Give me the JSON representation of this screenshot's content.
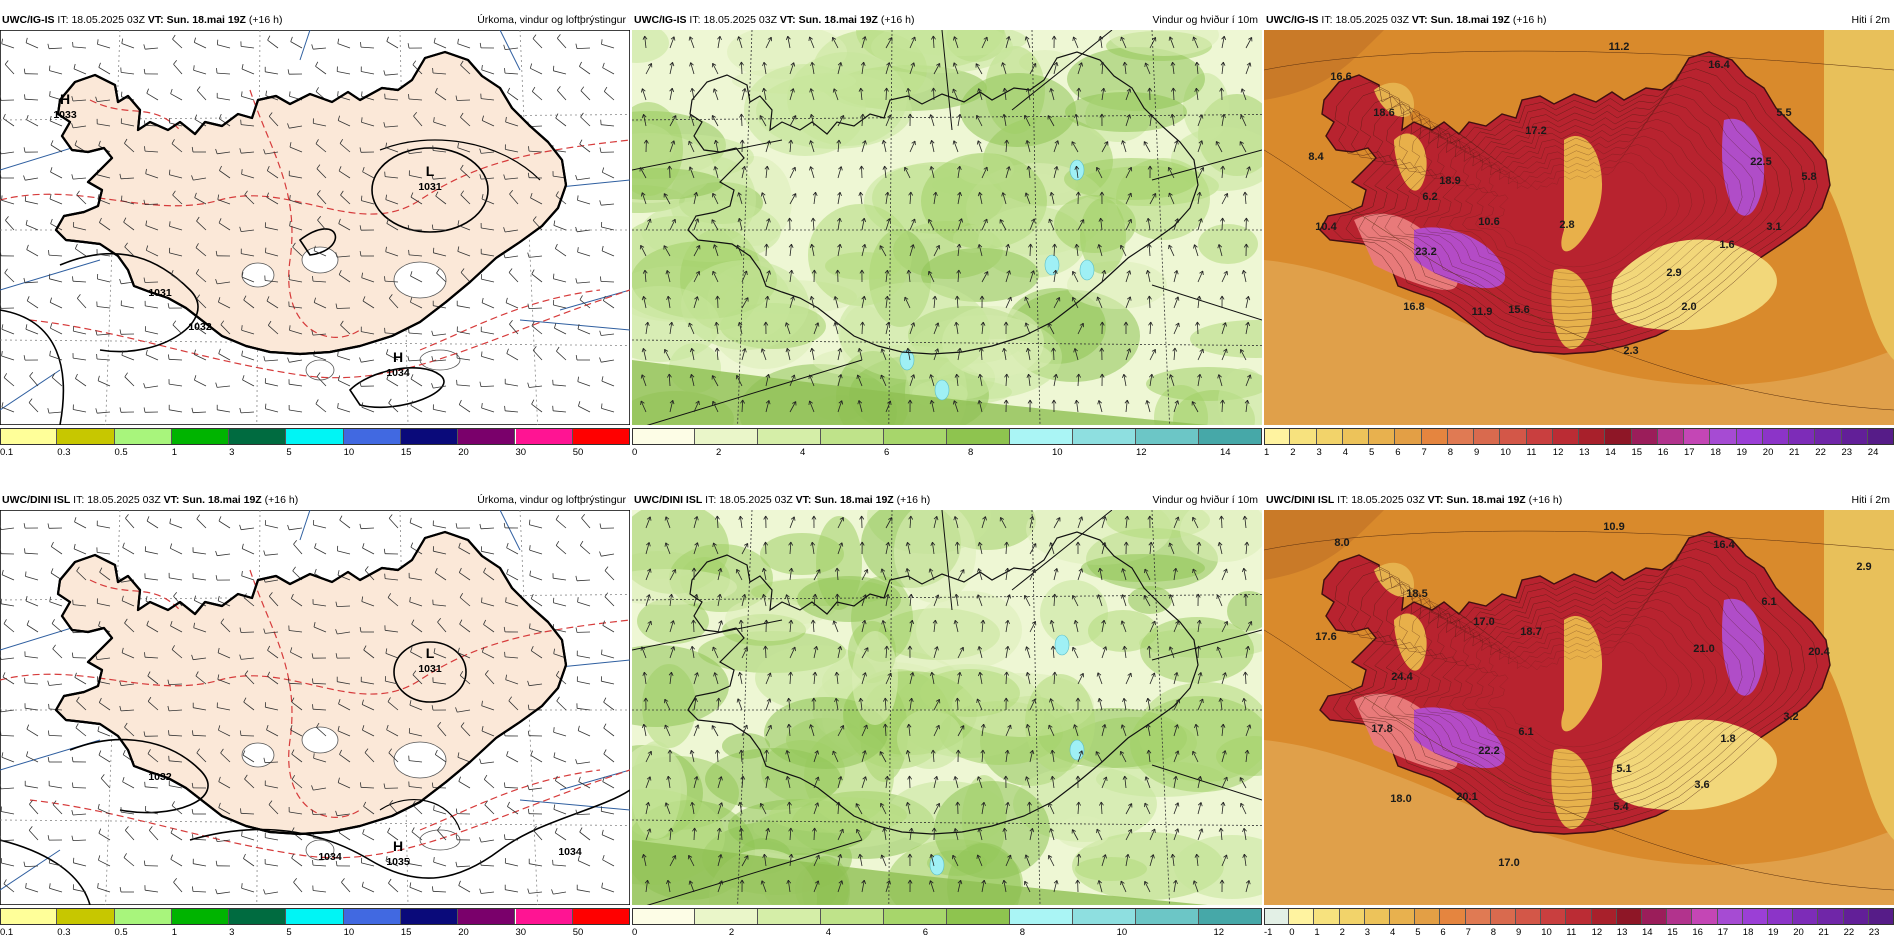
{
  "colors": {
    "precip_bg": "#ffffff",
    "land_pale": "#fbe8d8",
    "isobar": "#000000",
    "contour_red": "#d63b3b",
    "wind_bg": "#eef7d4",
    "temp_bg": "#d98a2c"
  },
  "panels": [
    {
      "type": "precip",
      "model": "UWC/IG-IS",
      "it_label": "IT:",
      "it": "18.05.2025 03Z",
      "vt_label": "VT:",
      "vt": "Sun. 18.mai 19Z",
      "lead": "(+16 h)",
      "field": "Úrkoma, vindur og loftþrýstingur",
      "pressure_labels": [
        {
          "kind": "H",
          "value": "1033"
        },
        {
          "kind": "L",
          "value": "1031"
        },
        {
          "kind": "",
          "value": "1031"
        },
        {
          "kind": "H",
          "value": "1034"
        },
        {
          "kind": "",
          "value": "1032"
        }
      ],
      "legend": {
        "colors": [
          "#ffff99",
          "#c7c700",
          "#a8f57c",
          "#00b400",
          "#006b40",
          "#00f5f5",
          "#4169e1",
          "#0a0a7a",
          "#7a006b",
          "#ff1493",
          "#ff0000"
        ],
        "ticks": [
          "0.1",
          "0.3",
          "0.5",
          "1",
          "3",
          "5",
          "10",
          "15",
          "20",
          "30",
          "50"
        ]
      }
    },
    {
      "type": "wind",
      "model": "UWC/IG-IS",
      "it_label": "IT:",
      "it": "18.05.2025 03Z",
      "vt_label": "VT:",
      "vt": "Sun. 18.mai 19Z",
      "lead": "(+16 h)",
      "field": "Vindur og hviður í 10m",
      "legend": {
        "colors": [
          "#fdfde6",
          "#eaf6c9",
          "#d5eea8",
          "#bfe38a",
          "#a7d66b",
          "#8ec44f",
          "#aaf5f5",
          "#8edfe0",
          "#6cc6c6",
          "#46a8a8"
        ],
        "ticks": [
          "0",
          "2",
          "4",
          "6",
          "8",
          "10",
          "12",
          "14"
        ]
      }
    },
    {
      "type": "temp",
      "model": "UWC/IG-IS",
      "it_label": "IT:",
      "it": "18.05.2025 03Z",
      "vt_label": "VT:",
      "vt": "Sun. 18.mai 19Z",
      "lead": "(+16 h)",
      "field": "Hiti í 2m",
      "temp_labels": [
        "11.2",
        "16.4",
        "5.5",
        "22.5",
        "5.8",
        "3.1",
        "1.6",
        "2.9",
        "2.0",
        "2.3",
        "15.6",
        "11.9",
        "16.8",
        "23.2",
        "10.4",
        "8.4",
        "18.6",
        "16.6",
        "17.2",
        "18.9",
        "10.6",
        "2.8",
        "6.2"
      ],
      "legend": {
        "colors": [
          "#fff3a0",
          "#f7e27e",
          "#f2d36a",
          "#edc35a",
          "#e8b14e",
          "#e39f45",
          "#e5853f",
          "#e07a53",
          "#d96a4e",
          "#d35748",
          "#c93f3f",
          "#bb2c34",
          "#a8202b",
          "#8e1626",
          "#9b1d5a",
          "#b2338d",
          "#c446b5",
          "#a64bd3",
          "#9b3fd6",
          "#8c34c8",
          "#7d2cb8",
          "#7026a8",
          "#621f98",
          "#561c88"
        ],
        "ticks": [
          "1",
          "2",
          "3",
          "4",
          "5",
          "6",
          "7",
          "8",
          "9",
          "10",
          "11",
          "12",
          "13",
          "14",
          "15",
          "16",
          "17",
          "18",
          "19",
          "20",
          "21",
          "22",
          "23",
          "24"
        ]
      }
    },
    {
      "type": "precip",
      "model": "UWC/DINI ISL",
      "it_label": "IT:",
      "it": "18.05.2025 03Z",
      "vt_label": "VT:",
      "vt": "Sun. 18.mai 19Z",
      "lead": "(+16 h)",
      "field": "Úrkoma, vindur og loftþrýstingur",
      "pressure_labels": [
        {
          "kind": "L",
          "value": "1031"
        },
        {
          "kind": "H",
          "value": "1035"
        },
        {
          "kind": "",
          "value": "1032"
        },
        {
          "kind": "",
          "value": "1034"
        },
        {
          "kind": "",
          "value": "1034"
        }
      ],
      "legend": {
        "colors": [
          "#ffff99",
          "#c7c700",
          "#a8f57c",
          "#00b400",
          "#006b40",
          "#00f5f5",
          "#4169e1",
          "#0a0a7a",
          "#7a006b",
          "#ff1493",
          "#ff0000"
        ],
        "ticks": [
          "0.1",
          "0.3",
          "0.5",
          "1",
          "3",
          "5",
          "10",
          "15",
          "20",
          "30",
          "50"
        ]
      }
    },
    {
      "type": "wind",
      "model": "UWC/DINI ISL",
      "it_label": "IT:",
      "it": "18.05.2025 03Z",
      "vt_label": "VT:",
      "vt": "Sun. 18.mai 19Z",
      "lead": "(+16 h)",
      "field": "Vindur og hviður í 10m",
      "legend": {
        "colors": [
          "#fdfde6",
          "#eaf6c9",
          "#d5eea8",
          "#bfe38a",
          "#a7d66b",
          "#8ec44f",
          "#aaf5f5",
          "#8edfe0",
          "#6cc6c6",
          "#46a8a8"
        ],
        "ticks": [
          "0",
          "2",
          "4",
          "6",
          "8",
          "10",
          "12"
        ]
      }
    },
    {
      "type": "temp",
      "model": "UWC/DINI ISL",
      "it_label": "IT:",
      "it": "18.05.2025 03Z",
      "vt_label": "VT:",
      "vt": "Sun. 18.mai 19Z",
      "lead": "(+16 h)",
      "field": "Hiti í 2m",
      "temp_labels": [
        "10.9",
        "16.4",
        "2.9",
        "6.1",
        "20.4",
        "21.0",
        "3.2",
        "1.8",
        "3.6",
        "5.4",
        "17.0",
        "18.0",
        "22.2",
        "20.1",
        "17.8",
        "24.4",
        "17.6",
        "8.0",
        "18.5",
        "17.0",
        "18.7",
        "6.1",
        "5.1"
      ],
      "legend": {
        "colors": [
          "#e3f0e6",
          "#fff3a0",
          "#f7e27e",
          "#f2d36a",
          "#edc35a",
          "#e8b14e",
          "#e39f45",
          "#e5853f",
          "#e07a53",
          "#d96a4e",
          "#d35748",
          "#c93f3f",
          "#bb2c34",
          "#a8202b",
          "#8e1626",
          "#9b1d5a",
          "#b2338d",
          "#c446b5",
          "#a64bd3",
          "#9b3fd6",
          "#8c34c8",
          "#7d2cb8",
          "#7026a8",
          "#621f98",
          "#561c88"
        ],
        "ticks": [
          "-1",
          "0",
          "1",
          "2",
          "3",
          "4",
          "5",
          "6",
          "7",
          "8",
          "9",
          "10",
          "11",
          "12",
          "13",
          "14",
          "15",
          "16",
          "17",
          "18",
          "19",
          "20",
          "21",
          "22",
          "23"
        ]
      }
    }
  ]
}
